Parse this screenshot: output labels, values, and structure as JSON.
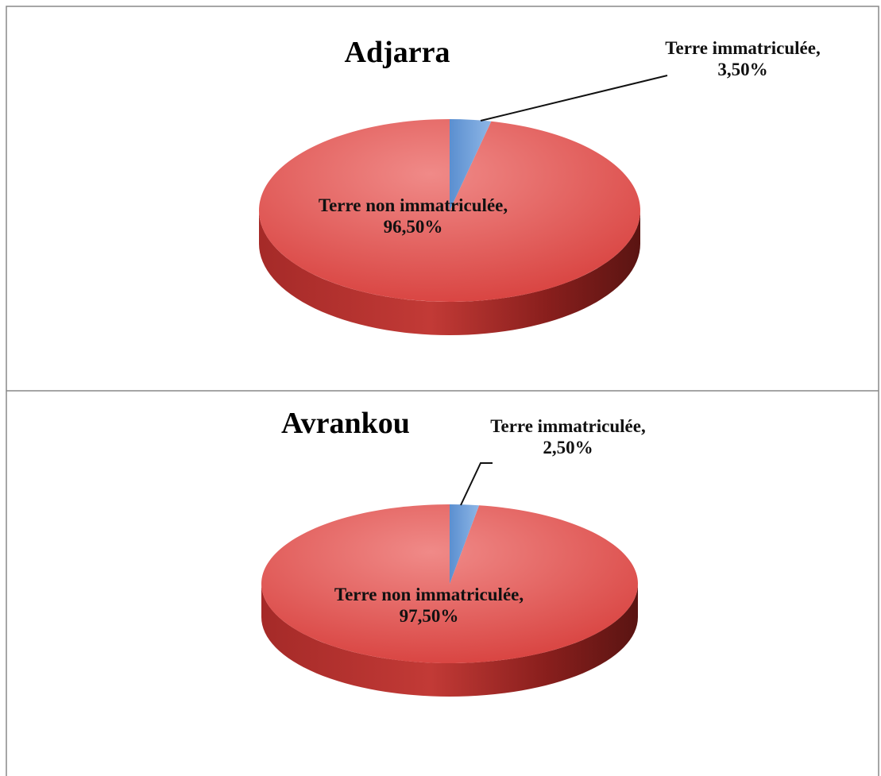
{
  "chart_data": [
    {
      "type": "pie3d",
      "title": "Adjarra",
      "categories": [
        "Terre non immatriculée,",
        "Terre immatriculée,"
      ],
      "values": [
        96.5,
        3.5
      ],
      "value_labels": [
        "96,50%",
        "3,50%"
      ],
      "colors": [
        "#d9413f",
        "#6f9fd8"
      ]
    },
    {
      "type": "pie3d",
      "title": "Avrankou",
      "categories": [
        "Terre non immatriculée,",
        "Terre immatriculée,"
      ],
      "values": [
        97.5,
        2.5
      ],
      "value_labels": [
        "97,50%",
        "2,50%"
      ],
      "colors": [
        "#d9413f",
        "#6f9fd8"
      ]
    }
  ]
}
